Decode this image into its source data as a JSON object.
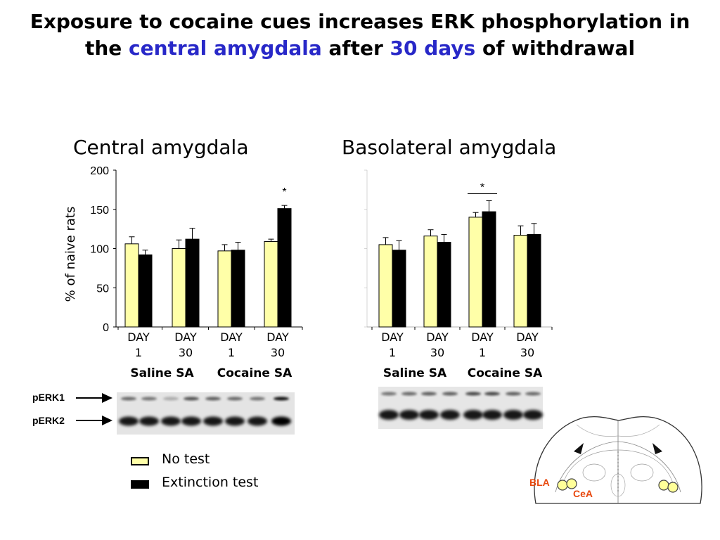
{
  "title": {
    "part1": "Exposure to cocaine cues increases ERK phosphorylation in",
    "part2": "the ",
    "highlight1": "central amygdala",
    "part3": " after ",
    "highlight2": "30 days",
    "part4": " of withdrawal"
  },
  "colors": {
    "highlight": "#2828c8",
    "no_test": "#ffffa8",
    "extinction_test": "#000000",
    "region_label": "#e8480e"
  },
  "chart_data": [
    {
      "type": "bar",
      "title": "Central amygdala",
      "ylabel": "% of naive rats",
      "ylim": [
        0,
        200
      ],
      "yticks": [
        "0",
        "50",
        "100",
        "150",
        "200"
      ],
      "categories": [
        "DAY 1",
        "DAY 30",
        "DAY 1",
        "DAY 30"
      ],
      "groups": [
        "Saline SA",
        "Cocaine SA"
      ],
      "series": [
        {
          "name": "No test",
          "values": [
            106,
            100,
            97,
            109
          ],
          "errors": [
            9,
            11,
            8,
            3
          ]
        },
        {
          "name": "Extinction test",
          "values": [
            92,
            112,
            98,
            151
          ],
          "errors": [
            6,
            14,
            10,
            4
          ]
        }
      ],
      "annotations": [
        "*"
      ]
    },
    {
      "type": "bar",
      "title": "Basolateral amygdala",
      "ylim": [
        0,
        200
      ],
      "categories": [
        "DAY 1",
        "DAY 30",
        "DAY 1",
        "DAY 30"
      ],
      "groups": [
        "Saline SA",
        "Cocaine SA"
      ],
      "series": [
        {
          "name": "No test",
          "values": [
            105,
            116,
            140,
            117
          ],
          "errors": [
            9,
            8,
            6,
            12
          ]
        },
        {
          "name": "Extinction test",
          "values": [
            98,
            108,
            147,
            118
          ],
          "errors": [
            12,
            10,
            14,
            14
          ]
        }
      ],
      "annotations": [
        "*"
      ]
    }
  ],
  "blot": {
    "labels": [
      "pERK1",
      "pERK2"
    ]
  },
  "legend": [
    {
      "label": "No test",
      "color": "#ffffa8"
    },
    {
      "label": "Extinction test",
      "color": "#000000"
    }
  ],
  "brain": {
    "labels": [
      "BLA",
      "CeA"
    ]
  }
}
